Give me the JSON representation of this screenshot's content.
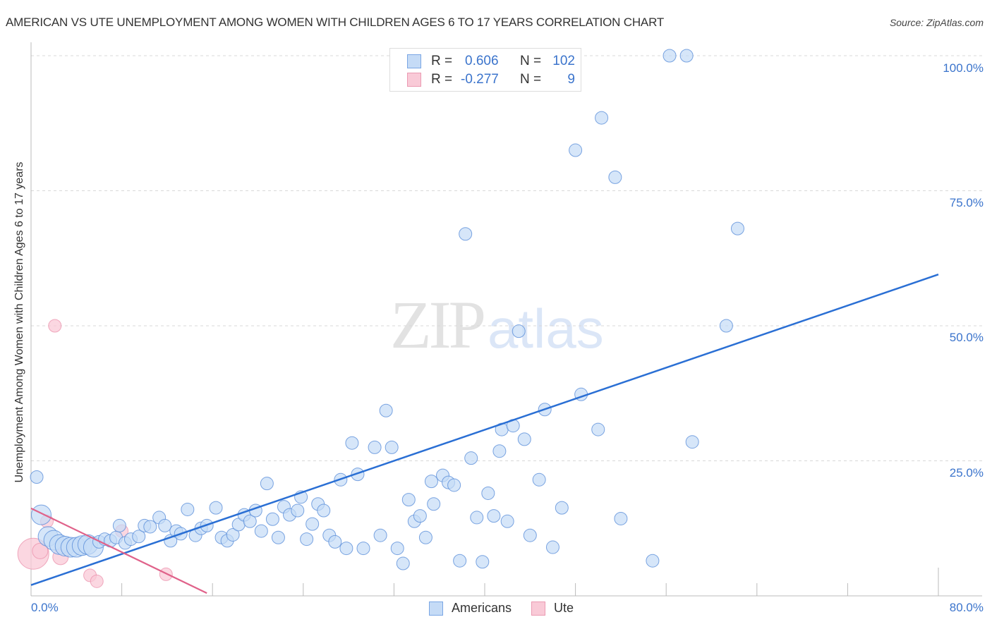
{
  "header": {
    "title": "AMERICAN VS UTE UNEMPLOYMENT AMONG WOMEN WITH CHILDREN AGES 6 TO 17 YEARS CORRELATION CHART",
    "source": "Source: ZipAtlas.com"
  },
  "watermark": {
    "zip": "ZIP",
    "atlas": "atlas"
  },
  "legend": {
    "rows": [
      {
        "r_label": "R =",
        "r_value": "0.606",
        "n_label": "N =",
        "n_value": "102",
        "color": "#a9c8f2"
      },
      {
        "r_label": "R =",
        "r_value": "-0.277",
        "n_label": "N =",
        "n_value": "9",
        "color": "#f7b6c8"
      }
    ]
  },
  "bottom_legend": {
    "items": [
      {
        "label": "Americans",
        "color": "#a9c8f2"
      },
      {
        "label": "Ute",
        "color": "#f7b6c8"
      }
    ]
  },
  "axes": {
    "ylabel": "Unemployment Among Women with Children Ages 6 to 17 years",
    "y_ticks": [
      "100.0%",
      "75.0%",
      "50.0%",
      "25.0%"
    ],
    "x_ticks": [
      "0.0%",
      "80.0%"
    ]
  },
  "colors": {
    "americans_fill": "#c5dbf6",
    "americans_stroke": "#5b8fd9",
    "americans_line": "#2a6fd4",
    "ute_fill": "#f9cad7",
    "ute_stroke": "#e98aa6",
    "ute_line": "#e0628a",
    "tick_text": "#3b74cc"
  },
  "chart_data": {
    "type": "scatter",
    "title": "AMERICAN VS UTE UNEMPLOYMENT AMONG WOMEN WITH CHILDREN AGES 6 TO 17 YEARS CORRELATION CHART",
    "xlabel": "",
    "ylabel": "Unemployment Among Women with Children Ages 6 to 17 years",
    "xlim": [
      0,
      80
    ],
    "ylim": [
      0,
      100
    ],
    "grid": {
      "y_dashed": [
        25,
        50,
        75,
        100
      ]
    },
    "legend_position": "top-center",
    "series": [
      {
        "name": "Americans",
        "R": 0.606,
        "N": 102,
        "trendline": {
          "x": [
            0,
            80
          ],
          "y": [
            2.0,
            59.5
          ]
        },
        "points": [
          [
            0.5,
            22.0
          ],
          [
            0.9,
            15.0
          ],
          [
            1.5,
            11.0
          ],
          [
            2.0,
            10.3
          ],
          [
            2.5,
            9.5
          ],
          [
            3.0,
            9.2
          ],
          [
            3.5,
            9.0
          ],
          [
            4.0,
            9.0
          ],
          [
            4.5,
            9.3
          ],
          [
            5.0,
            9.5
          ],
          [
            5.5,
            9.0
          ],
          [
            6.0,
            10.0
          ],
          [
            6.5,
            10.5
          ],
          [
            7.0,
            10.2
          ],
          [
            7.5,
            10.8
          ],
          [
            7.8,
            13.0
          ],
          [
            8.3,
            9.8
          ],
          [
            8.8,
            10.5
          ],
          [
            9.5,
            11.0
          ],
          [
            10.0,
            13.0
          ],
          [
            10.5,
            12.8
          ],
          [
            11.3,
            14.5
          ],
          [
            11.8,
            13.0
          ],
          [
            12.3,
            10.2
          ],
          [
            12.8,
            12.0
          ],
          [
            13.2,
            11.5
          ],
          [
            13.8,
            16.0
          ],
          [
            14.5,
            11.2
          ],
          [
            15.0,
            12.5
          ],
          [
            15.5,
            13.0
          ],
          [
            16.3,
            16.3
          ],
          [
            16.8,
            10.8
          ],
          [
            17.3,
            10.2
          ],
          [
            17.8,
            11.3
          ],
          [
            18.3,
            13.2
          ],
          [
            18.8,
            15.0
          ],
          [
            19.3,
            13.8
          ],
          [
            19.8,
            15.8
          ],
          [
            20.3,
            12.0
          ],
          [
            20.8,
            20.8
          ],
          [
            21.3,
            14.2
          ],
          [
            21.8,
            10.8
          ],
          [
            22.3,
            16.5
          ],
          [
            22.8,
            15.0
          ],
          [
            23.5,
            15.8
          ],
          [
            23.8,
            18.3
          ],
          [
            24.3,
            10.5
          ],
          [
            24.8,
            13.3
          ],
          [
            25.3,
            17.0
          ],
          [
            25.8,
            15.8
          ],
          [
            26.3,
            11.2
          ],
          [
            26.8,
            10.0
          ],
          [
            27.3,
            21.5
          ],
          [
            27.8,
            8.8
          ],
          [
            28.3,
            28.3
          ],
          [
            28.8,
            22.5
          ],
          [
            29.3,
            8.8
          ],
          [
            30.3,
            27.5
          ],
          [
            30.8,
            11.2
          ],
          [
            31.3,
            34.3
          ],
          [
            31.8,
            27.5
          ],
          [
            32.3,
            8.8
          ],
          [
            32.8,
            6.0
          ],
          [
            33.3,
            17.8
          ],
          [
            33.8,
            13.8
          ],
          [
            34.3,
            14.8
          ],
          [
            34.8,
            10.8
          ],
          [
            35.3,
            21.2
          ],
          [
            35.5,
            17.0
          ],
          [
            36.3,
            22.3
          ],
          [
            36.8,
            21.0
          ],
          [
            37.3,
            20.5
          ],
          [
            37.8,
            6.5
          ],
          [
            38.3,
            67.0
          ],
          [
            39.3,
            14.5
          ],
          [
            39.8,
            6.3
          ],
          [
            40.3,
            19.0
          ],
          [
            40.8,
            14.8
          ],
          [
            41.3,
            26.8
          ],
          [
            41.5,
            30.8
          ],
          [
            42.0,
            13.8
          ],
          [
            42.5,
            31.5
          ],
          [
            43.0,
            49.0
          ],
          [
            43.5,
            29.0
          ],
          [
            44.0,
            11.2
          ],
          [
            45.3,
            34.5
          ],
          [
            46.8,
            16.3
          ],
          [
            48.0,
            82.5
          ],
          [
            48.5,
            37.3
          ],
          [
            50.0,
            30.8
          ],
          [
            50.3,
            88.5
          ],
          [
            51.5,
            77.5
          ],
          [
            52.0,
            14.3
          ],
          [
            54.8,
            6.5
          ],
          [
            56.3,
            100.0
          ],
          [
            57.8,
            100.0
          ],
          [
            58.3,
            28.5
          ],
          [
            61.3,
            50.0
          ],
          [
            62.3,
            68.0
          ],
          [
            46.0,
            9.0
          ],
          [
            38.8,
            25.5
          ],
          [
            44.8,
            21.5
          ]
        ]
      },
      {
        "name": "Ute",
        "R": -0.277,
        "N": 9,
        "trendline": {
          "x": [
            0,
            15.5
          ],
          "y": [
            16.2,
            0.5
          ]
        },
        "points": [
          [
            0.2,
            7.8
          ],
          [
            0.8,
            8.3
          ],
          [
            1.4,
            13.8
          ],
          [
            2.1,
            50.0
          ],
          [
            2.6,
            7.2
          ],
          [
            5.2,
            3.8
          ],
          [
            5.8,
            2.7
          ],
          [
            8.0,
            12.0
          ],
          [
            11.9,
            4.0
          ]
        ]
      }
    ]
  }
}
